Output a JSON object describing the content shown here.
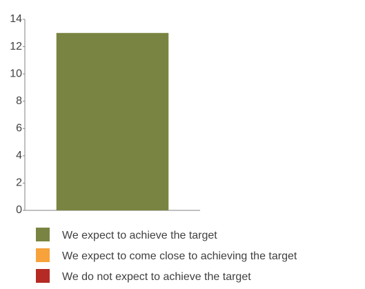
{
  "chart_data": {
    "type": "bar",
    "stacked": true,
    "categories": [
      null
    ],
    "series": [
      {
        "name": "We expect to achieve the target",
        "color": "#7a8442",
        "values": [
          13
        ]
      },
      {
        "name": "We expect to come close to achieving the target",
        "color": "#f7a23a",
        "values": [
          0
        ]
      },
      {
        "name": "We do not expect to achieve the target",
        "color": "#b52a24",
        "values": [
          0
        ]
      }
    ],
    "ylim": [
      0,
      14
    ],
    "yticks": [
      0,
      2,
      4,
      6,
      8,
      10,
      12,
      14
    ],
    "grid": false,
    "legend": "bottom"
  }
}
